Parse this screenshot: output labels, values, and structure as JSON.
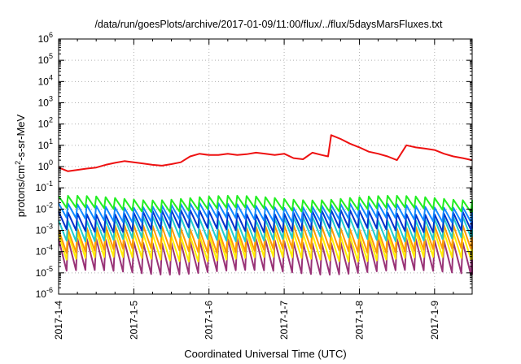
{
  "chart_data": {
    "type": "line",
    "title": "/data/run/goesPlots/archive/2017-01-09/11:00/flux/../flux/5daysMarsFluxes.txt",
    "xlabel": "Coordinated Universal Time (UTC)",
    "ylabel": "protons/cm2-s-sr-MeV",
    "y_scale": "log",
    "ylim": [
      1e-06,
      1000000.0
    ],
    "xlim": [
      "2017-01-04T00:00",
      "2017-01-09T12:00"
    ],
    "grid": true,
    "x_tick_labels": [
      "2017-1-4",
      "2017-1-5",
      "2017-1-6",
      "2017-1-7",
      "2017-1-8",
      "2017-1-9"
    ],
    "y_tick_labels": [
      {
        "base": "10",
        "exp": "-6"
      },
      {
        "base": "10",
        "exp": "-5"
      },
      {
        "base": "10",
        "exp": "-4"
      },
      {
        "base": "10",
        "exp": "-3"
      },
      {
        "base": "10",
        "exp": "-2"
      },
      {
        "base": "10",
        "exp": "-1"
      },
      {
        "base": "10",
        "exp": "0"
      },
      {
        "base": "10",
        "exp": "1"
      },
      {
        "base": "10",
        "exp": "2"
      },
      {
        "base": "10",
        "exp": "3"
      },
      {
        "base": "10",
        "exp": "4"
      },
      {
        "base": "10",
        "exp": "5"
      },
      {
        "base": "10",
        "exp": "6"
      }
    ],
    "series": [
      {
        "color": "#ee1111",
        "x": [
          "2017-01-04T00:00",
          "2017-01-04T03:00",
          "2017-01-04T06:00",
          "2017-01-04T09:00",
          "2017-01-04T12:00",
          "2017-01-04T15:00",
          "2017-01-04T18:00",
          "2017-01-04T21:00",
          "2017-01-05T00:00",
          "2017-01-05T03:00",
          "2017-01-05T06:00",
          "2017-01-05T09:00",
          "2017-01-05T12:00",
          "2017-01-05T15:00",
          "2017-01-05T18:00",
          "2017-01-05T21:00",
          "2017-01-06T00:00",
          "2017-01-06T03:00",
          "2017-01-06T06:00",
          "2017-01-06T09:00",
          "2017-01-06T12:00",
          "2017-01-06T15:00",
          "2017-01-06T18:00",
          "2017-01-06T21:00",
          "2017-01-07T00:00",
          "2017-01-07T03:00",
          "2017-01-07T06:00",
          "2017-01-07T09:00",
          "2017-01-07T12:00",
          "2017-01-07T14:00",
          "2017-01-07T15:00",
          "2017-01-07T18:00",
          "2017-01-07T21:00",
          "2017-01-08T00:00",
          "2017-01-08T03:00",
          "2017-01-08T06:00",
          "2017-01-08T09:00",
          "2017-01-08T12:00",
          "2017-01-08T15:00",
          "2017-01-08T18:00",
          "2017-01-08T21:00",
          "2017-01-09T00:00",
          "2017-01-09T03:00",
          "2017-01-09T06:00",
          "2017-01-09T09:00",
          "2017-01-09T12:00"
        ],
        "y": [
          0.9,
          0.6,
          0.7,
          0.8,
          0.9,
          1.2,
          1.5,
          1.8,
          1.6,
          1.4,
          1.2,
          1.1,
          1.3,
          1.6,
          3.0,
          4.0,
          3.5,
          3.5,
          4.0,
          3.5,
          3.8,
          4.5,
          4.0,
          3.5,
          4.0,
          2.5,
          2.2,
          4.5,
          3.5,
          3.0,
          30,
          20,
          12,
          8,
          5,
          4,
          3,
          2,
          10,
          8,
          7,
          6,
          4,
          3,
          2.5,
          2
        ]
      },
      {
        "color": "#22ee22",
        "base": 0.018,
        "amp": 1.9
      },
      {
        "color": "#1188ff",
        "base": 0.007,
        "amp": 2.2
      },
      {
        "color": "#0033cc",
        "base": 0.0028,
        "amp": 2.6
      },
      {
        "color": "#22cccc",
        "base": 0.0012,
        "amp": 3.0
      },
      {
        "color": "#ff9900",
        "base": 0.0004,
        "amp": 3.5
      },
      {
        "color": "#ffee00",
        "base": 0.00018,
        "amp": 4.0
      },
      {
        "color": "#993377",
        "base": 6e-05,
        "amp": 5.5
      }
    ]
  }
}
